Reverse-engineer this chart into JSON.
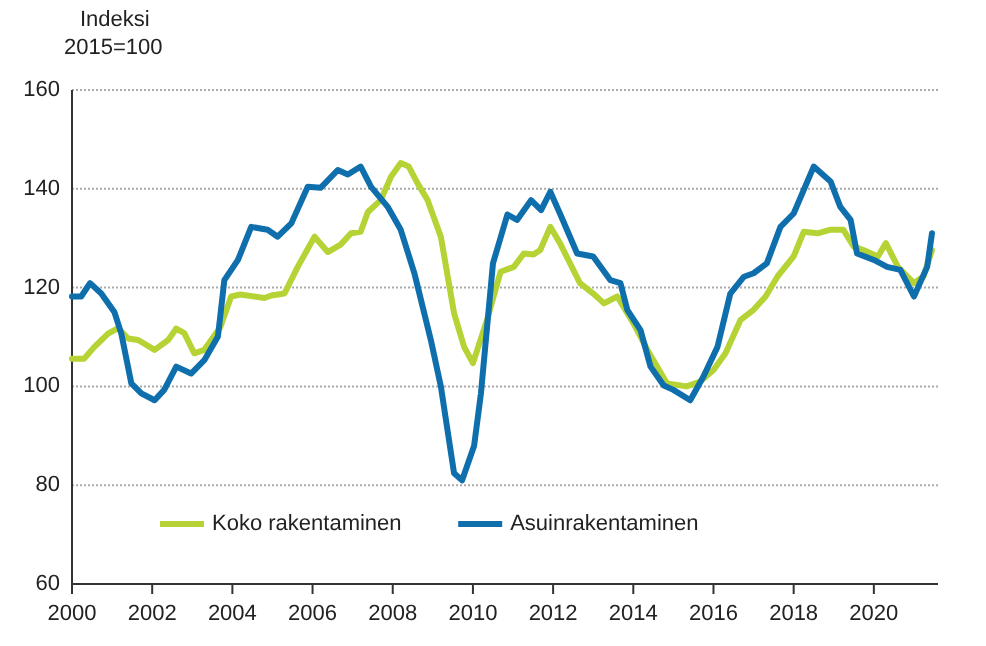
{
  "chart_data": {
    "type": "line",
    "ylabel": "Indeksi\n2015=100",
    "xlim": [
      2000,
      2021.6
    ],
    "xticks": [
      2000,
      2002,
      2004,
      2006,
      2008,
      2010,
      2012,
      2014,
      2016,
      2018,
      2020
    ],
    "ylim": [
      60,
      160
    ],
    "yticks": [
      60,
      80,
      100,
      120,
      140,
      160
    ],
    "grid": "y",
    "legend": "bottom",
    "line_style": "solid",
    "marker": "none",
    "series": [
      {
        "name": "Koko rakentaminen",
        "color": "#b5d334",
        "x": [
          2000,
          2000.3,
          2000.56,
          2000.9,
          2001.15,
          2001.4,
          2001.65,
          2002.06,
          2002.4,
          2002.6,
          2002.8,
          2003.05,
          2003.3,
          2003.7,
          2003.97,
          2004.2,
          2004.8,
          2004.97,
          2005.3,
          2005.63,
          2006.05,
          2006.38,
          2006.7,
          2006.96,
          2007.2,
          2007.38,
          2007.7,
          2007.96,
          2008.2,
          2008.4,
          2008.62,
          2008.87,
          2009.2,
          2009.53,
          2009.78,
          2010,
          2010.35,
          2010.69,
          2011.02,
          2011.27,
          2011.51,
          2011.68,
          2011.93,
          2012.17,
          2012.67,
          2013,
          2013.27,
          2013.6,
          2014,
          2014.4,
          2014.84,
          2015.33,
          2015.67,
          2016,
          2016.3,
          2016.67,
          2017,
          2017.3,
          2017.6,
          2018,
          2018.25,
          2018.6,
          2018.9,
          2019.24,
          2019.5,
          2019.74,
          2020.1,
          2020.3,
          2020.6,
          2021,
          2021.24,
          2021.45
        ],
        "values": [
          105.6,
          105.6,
          108,
          110.7,
          111.8,
          109.7,
          109.4,
          107.4,
          109.4,
          111.7,
          110.8,
          106.7,
          107.4,
          112,
          118.2,
          118.6,
          117.9,
          118.4,
          118.8,
          124.2,
          130.3,
          127.2,
          128.7,
          131,
          131.3,
          135.3,
          137.7,
          142.5,
          145.2,
          144.5,
          141.1,
          137.7,
          130.3,
          114.8,
          108,
          104.7,
          113.4,
          123.2,
          124.2,
          126.9,
          126.7,
          127.6,
          132.3,
          129,
          120.9,
          118.8,
          116.8,
          118.2,
          112.8,
          106.7,
          100.6,
          100,
          101,
          103.3,
          106.7,
          113.4,
          115.5,
          118.2,
          122.3,
          126.3,
          131.3,
          131,
          131.7,
          131.7,
          128.3,
          127.6,
          126.3,
          129,
          124.2,
          120.9,
          122.3,
          127.6
        ]
      },
      {
        "name": "Asuinrakentaminen",
        "color": "#0f6fad",
        "x": [
          2000,
          2000.23,
          2000.45,
          2000.73,
          2001.06,
          2001.23,
          2001.48,
          2001.73,
          2002.06,
          2002.3,
          2002.6,
          2002.97,
          2003.3,
          2003.64,
          2003.8,
          2004.14,
          2004.47,
          2004.88,
          2005.13,
          2005.47,
          2005.88,
          2006.2,
          2006.63,
          2006.88,
          2007.2,
          2007.46,
          2007.87,
          2008.2,
          2008.54,
          2008.95,
          2009.2,
          2009.53,
          2009.73,
          2010.03,
          2010.2,
          2010.5,
          2010.86,
          2011.1,
          2011.45,
          2011.7,
          2011.93,
          2012.17,
          2012.6,
          2013,
          2013.43,
          2013.68,
          2013.85,
          2014.18,
          2014.43,
          2014.76,
          2015,
          2015.42,
          2015.75,
          2016.1,
          2016.42,
          2016.76,
          2017,
          2017.33,
          2017.67,
          2018,
          2018.5,
          2018.92,
          2019.16,
          2019.42,
          2019.58,
          2020,
          2020.33,
          2020.66,
          2021,
          2021.33,
          2021.45
        ],
        "values": [
          118.2,
          118.2,
          120.9,
          118.8,
          115,
          110.7,
          100.6,
          98.6,
          97.2,
          99.3,
          104,
          102.6,
          105.3,
          110.1,
          121.5,
          125.6,
          132.3,
          131.7,
          130.3,
          133,
          140.4,
          140.2,
          143.8,
          142.9,
          144.5,
          140.4,
          136.4,
          131.7,
          122.9,
          109.4,
          100,
          82.4,
          81,
          88,
          98.6,
          124.9,
          134.8,
          133.7,
          137.7,
          135.7,
          139.4,
          135,
          126.9,
          126.3,
          121.5,
          120.9,
          115.5,
          111.4,
          104,
          100.2,
          99.3,
          97.2,
          102,
          108,
          118.8,
          122.2,
          122.9,
          124.9,
          132.3,
          135,
          144.5,
          141.5,
          136.4,
          133.7,
          126.9,
          125.6,
          124.2,
          123.6,
          118.2,
          124.2,
          131
        ]
      }
    ]
  }
}
